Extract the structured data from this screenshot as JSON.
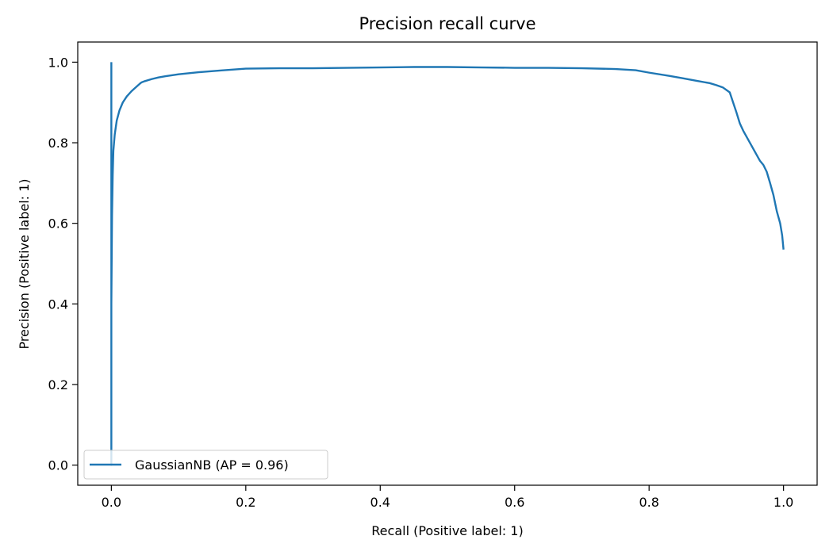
{
  "chart_data": {
    "type": "line",
    "title": "Precision recall curve",
    "xlabel": "Recall (Positive label: 1)",
    "ylabel": "Precision (Positive label: 1)",
    "xlim": [
      -0.05,
      1.05
    ],
    "ylim": [
      -0.05,
      1.05
    ],
    "xticks": [
      0.0,
      0.2,
      0.4,
      0.6,
      0.8,
      1.0
    ],
    "yticks": [
      0.0,
      0.2,
      0.4,
      0.6,
      0.8,
      1.0
    ],
    "xtick_labels": [
      "0.0",
      "0.2",
      "0.4",
      "0.6",
      "0.8",
      "1.0"
    ],
    "ytick_labels": [
      "0.0",
      "0.2",
      "0.4",
      "0.6",
      "0.8",
      "1.0"
    ],
    "grid": false,
    "legend_position": "lower-left",
    "series": [
      {
        "name": "GaussianNB (AP = 0.96)",
        "color": "#1f77b4",
        "x": [
          0.0,
          0.0,
          0.0,
          0.001,
          0.002,
          0.003,
          0.005,
          0.008,
          0.012,
          0.017,
          0.023,
          0.03,
          0.038,
          0.042,
          0.045,
          0.05,
          0.06,
          0.07,
          0.08,
          0.1,
          0.13,
          0.16,
          0.2,
          0.25,
          0.3,
          0.35,
          0.4,
          0.45,
          0.5,
          0.55,
          0.6,
          0.65,
          0.7,
          0.75,
          0.78,
          0.8,
          0.83,
          0.85,
          0.87,
          0.89,
          0.9,
          0.91,
          0.92,
          0.925,
          0.93,
          0.935,
          0.94,
          0.95,
          0.96,
          0.965,
          0.97,
          0.975,
          0.98,
          0.985,
          0.99,
          0.995,
          0.998,
          1.0
        ],
        "y": [
          1.0,
          0.0,
          0.4,
          0.62,
          0.72,
          0.78,
          0.82,
          0.855,
          0.88,
          0.9,
          0.915,
          0.928,
          0.94,
          0.946,
          0.95,
          0.953,
          0.958,
          0.962,
          0.965,
          0.97,
          0.975,
          0.979,
          0.984,
          0.985,
          0.985,
          0.986,
          0.987,
          0.988,
          0.988,
          0.987,
          0.986,
          0.986,
          0.985,
          0.983,
          0.98,
          0.974,
          0.966,
          0.96,
          0.954,
          0.948,
          0.943,
          0.937,
          0.925,
          0.9,
          0.875,
          0.848,
          0.83,
          0.8,
          0.77,
          0.755,
          0.745,
          0.728,
          0.7,
          0.67,
          0.63,
          0.6,
          0.57,
          0.535
        ]
      }
    ]
  }
}
